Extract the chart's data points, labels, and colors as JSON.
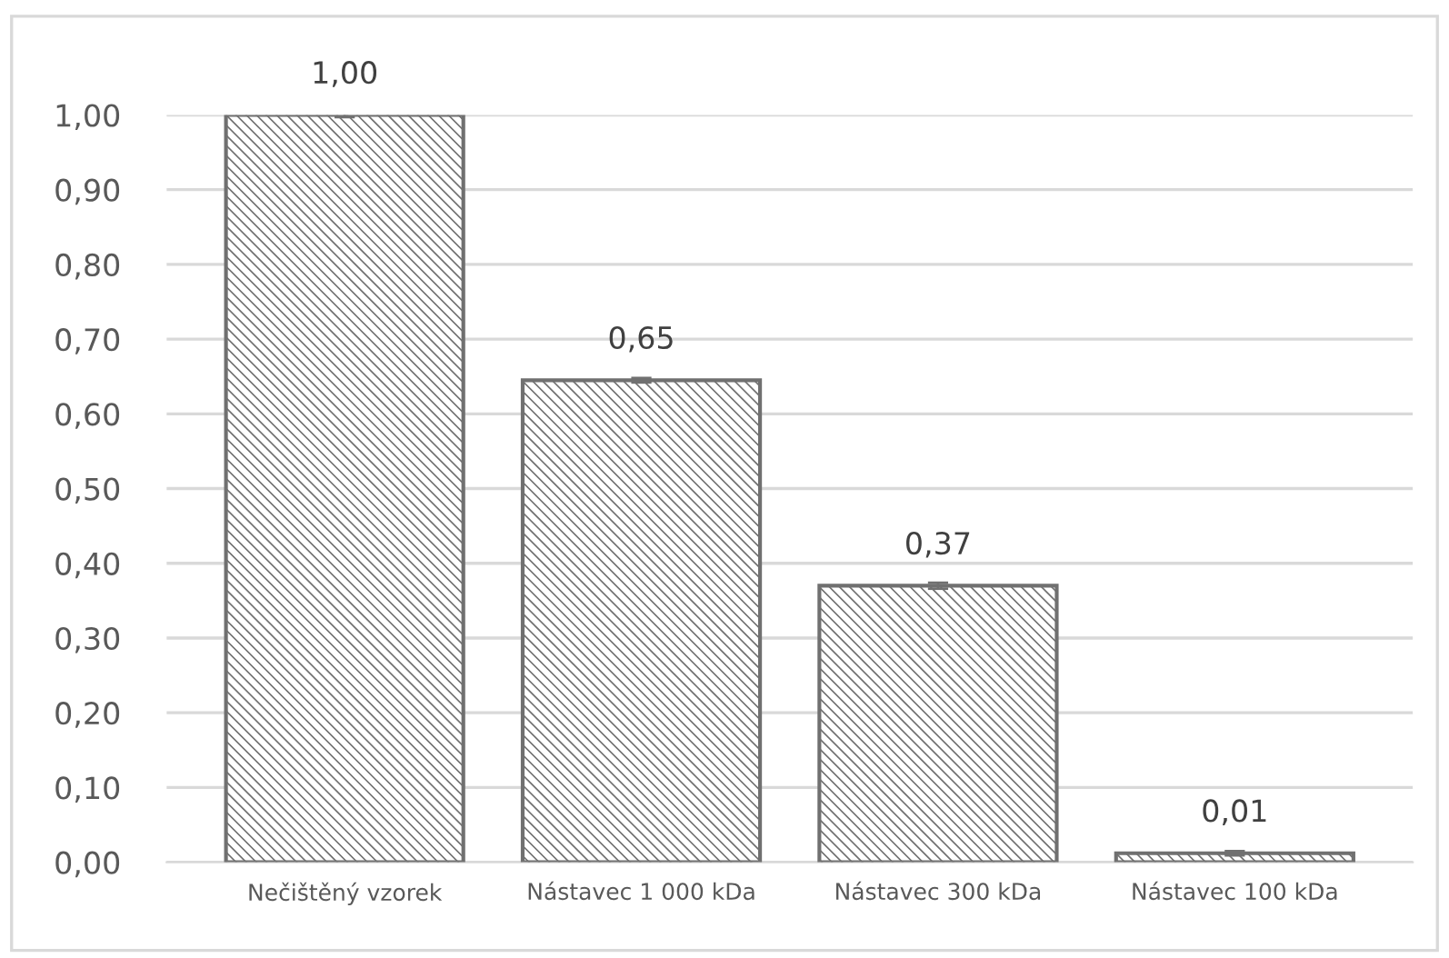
{
  "chart_data": {
    "type": "bar",
    "categories": [
      "Nečištěný vzorek",
      "Nástavec 1 000 kDa",
      "Nástavec 300 kDa",
      "Nástavec 100 kDa"
    ],
    "values": [
      1.0,
      0.645,
      0.37,
      0.012
    ],
    "errors": [
      0.003,
      0.003,
      0.004,
      0.003
    ],
    "value_labels": [
      "1,00",
      "0,65",
      "0,37",
      "0,01"
    ],
    "color": "#707070",
    "ylim": [
      0,
      1.0
    ],
    "yticks": [
      {
        "value": 0,
        "label": "0,00"
      },
      {
        "value": 0.1,
        "label": "0,10"
      },
      {
        "value": 0.2,
        "label": "0,20"
      },
      {
        "value": 0.3,
        "label": "0,30"
      },
      {
        "value": 0.4,
        "label": "0,40"
      },
      {
        "value": 0.5,
        "label": "0,50"
      },
      {
        "value": 0.6,
        "label": "0,60"
      },
      {
        "value": 0.7,
        "label": "0,70"
      },
      {
        "value": 0.8,
        "label": "0,80"
      },
      {
        "value": 0.9,
        "label": "0,90"
      },
      {
        "value": 1.0,
        "label": "1,00"
      }
    ],
    "grid": "y",
    "legend": false
  }
}
